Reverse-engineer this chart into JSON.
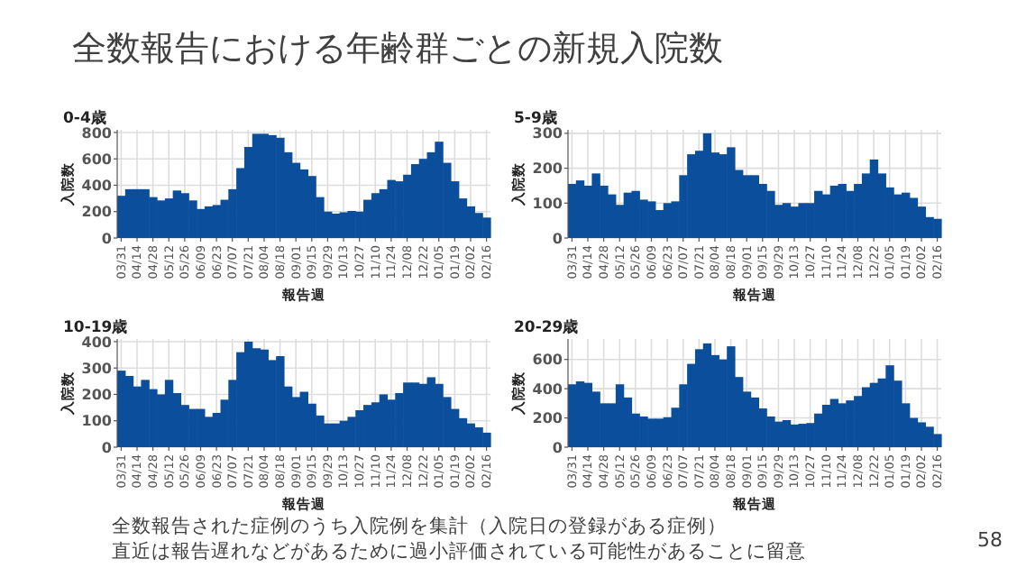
{
  "chart_data": [
    {
      "type": "other",
      "title": "全数報告における年齢群ごとの新規入院数",
      "annotations": [
        "全数報告された症例のうち入院例を集計（入院日の登録がある症例）",
        "直近は報告遅れなどがあるために過小評価されている可能性があることに留意",
        "58"
      ]
    },
    {
      "type": "bar",
      "title": "0-4歳",
      "xlabel": "報告週",
      "ylabel": "入院数",
      "color": "#0b4e9c",
      "grid": true,
      "ylim": [
        0,
        820
      ],
      "yticks": [
        0,
        200,
        400,
        600,
        800
      ],
      "categories": [
        "03/31",
        null,
        "04/14",
        null,
        "04/28",
        null,
        "05/12",
        null,
        "05/26",
        null,
        "06/09",
        null,
        "06/23",
        null,
        "07/07",
        null,
        "07/21",
        null,
        "08/04",
        null,
        "08/18",
        null,
        "09/01",
        null,
        "09/15",
        null,
        "09/29",
        null,
        "10/13",
        null,
        "10/27",
        null,
        "11/10",
        null,
        "11/24",
        null,
        "12/08",
        null,
        "12/22",
        null,
        "01/05",
        null,
        "01/19",
        null,
        "02/02",
        null,
        "02/16"
      ],
      "values": [
        320,
        370,
        370,
        370,
        310,
        285,
        300,
        360,
        340,
        285,
        220,
        240,
        250,
        290,
        370,
        530,
        690,
        790,
        790,
        780,
        760,
        650,
        570,
        520,
        470,
        310,
        200,
        185,
        195,
        205,
        200,
        290,
        340,
        370,
        440,
        430,
        480,
        560,
        600,
        650,
        730,
        570,
        430,
        300,
        240,
        190,
        155
      ]
    },
    {
      "type": "bar",
      "title": "5-9歳",
      "xlabel": "報告週",
      "ylabel": "入院数",
      "color": "#0b4e9c",
      "grid": true,
      "ylim": [
        0,
        310
      ],
      "yticks": [
        0,
        100,
        200,
        300
      ],
      "categories": [
        "03/31",
        null,
        "04/14",
        null,
        "04/28",
        null,
        "05/12",
        null,
        "05/26",
        null,
        "06/09",
        null,
        "06/23",
        null,
        "07/07",
        null,
        "07/21",
        null,
        "08/04",
        null,
        "08/18",
        null,
        "09/01",
        null,
        "09/15",
        null,
        "09/29",
        null,
        "10/13",
        null,
        "10/27",
        null,
        "11/10",
        null,
        "11/24",
        null,
        "12/08",
        null,
        "12/22",
        null,
        "01/05",
        null,
        "01/19",
        null,
        "02/02",
        null,
        "02/16"
      ],
      "values": [
        155,
        165,
        150,
        185,
        150,
        125,
        95,
        130,
        135,
        110,
        105,
        80,
        100,
        105,
        180,
        240,
        250,
        300,
        245,
        240,
        260,
        195,
        180,
        180,
        155,
        135,
        95,
        100,
        90,
        100,
        100,
        135,
        125,
        150,
        155,
        135,
        155,
        185,
        225,
        185,
        145,
        125,
        130,
        115,
        90,
        60,
        55
      ]
    },
    {
      "type": "bar",
      "title": "10-19歳",
      "xlabel": "報告週",
      "ylabel": "入院数",
      "color": "#0b4e9c",
      "grid": true,
      "ylim": [
        0,
        410
      ],
      "yticks": [
        0,
        100,
        200,
        300,
        400
      ],
      "categories": [
        "03/31",
        null,
        "04/14",
        null,
        "04/28",
        null,
        "05/12",
        null,
        "05/26",
        null,
        "06/09",
        null,
        "06/23",
        null,
        "07/07",
        null,
        "07/21",
        null,
        "08/04",
        null,
        "08/18",
        null,
        "09/01",
        null,
        "09/15",
        null,
        "09/29",
        null,
        "10/13",
        null,
        "10/27",
        null,
        "11/10",
        null,
        "11/24",
        null,
        "12/08",
        null,
        "12/22",
        null,
        "01/05",
        null,
        "01/19",
        null,
        "02/02",
        null,
        "02/16"
      ],
      "values": [
        290,
        270,
        230,
        255,
        220,
        200,
        255,
        205,
        160,
        145,
        145,
        115,
        130,
        180,
        255,
        360,
        400,
        375,
        370,
        330,
        345,
        230,
        190,
        210,
        165,
        120,
        90,
        90,
        100,
        115,
        140,
        160,
        170,
        200,
        180,
        205,
        245,
        245,
        240,
        265,
        240,
        190,
        145,
        110,
        90,
        75,
        55
      ]
    },
    {
      "type": "bar",
      "title": "20-29歳",
      "xlabel": "報告週",
      "ylabel": "入院数",
      "color": "#0b4e9c",
      "grid": true,
      "ylim": [
        0,
        740
      ],
      "yticks": [
        0,
        200,
        400,
        600
      ],
      "categories": [
        "03/31",
        null,
        "04/14",
        null,
        "04/28",
        null,
        "05/12",
        null,
        "05/26",
        null,
        "06/09",
        null,
        "06/23",
        null,
        "07/07",
        null,
        "07/21",
        null,
        "08/04",
        null,
        "08/18",
        null,
        "09/01",
        null,
        "09/15",
        null,
        "09/29",
        null,
        "10/13",
        null,
        "10/27",
        null,
        "11/10",
        null,
        "11/24",
        null,
        "12/08",
        null,
        "12/22",
        null,
        "01/05",
        null,
        "01/19",
        null,
        "02/02",
        null,
        "02/16"
      ],
      "values": [
        430,
        450,
        440,
        380,
        300,
        300,
        430,
        340,
        230,
        210,
        195,
        195,
        205,
        270,
        430,
        570,
        670,
        710,
        630,
        600,
        690,
        480,
        380,
        340,
        265,
        210,
        175,
        185,
        155,
        160,
        165,
        230,
        290,
        330,
        300,
        320,
        350,
        410,
        440,
        470,
        560,
        455,
        300,
        200,
        170,
        140,
        90
      ]
    }
  ]
}
